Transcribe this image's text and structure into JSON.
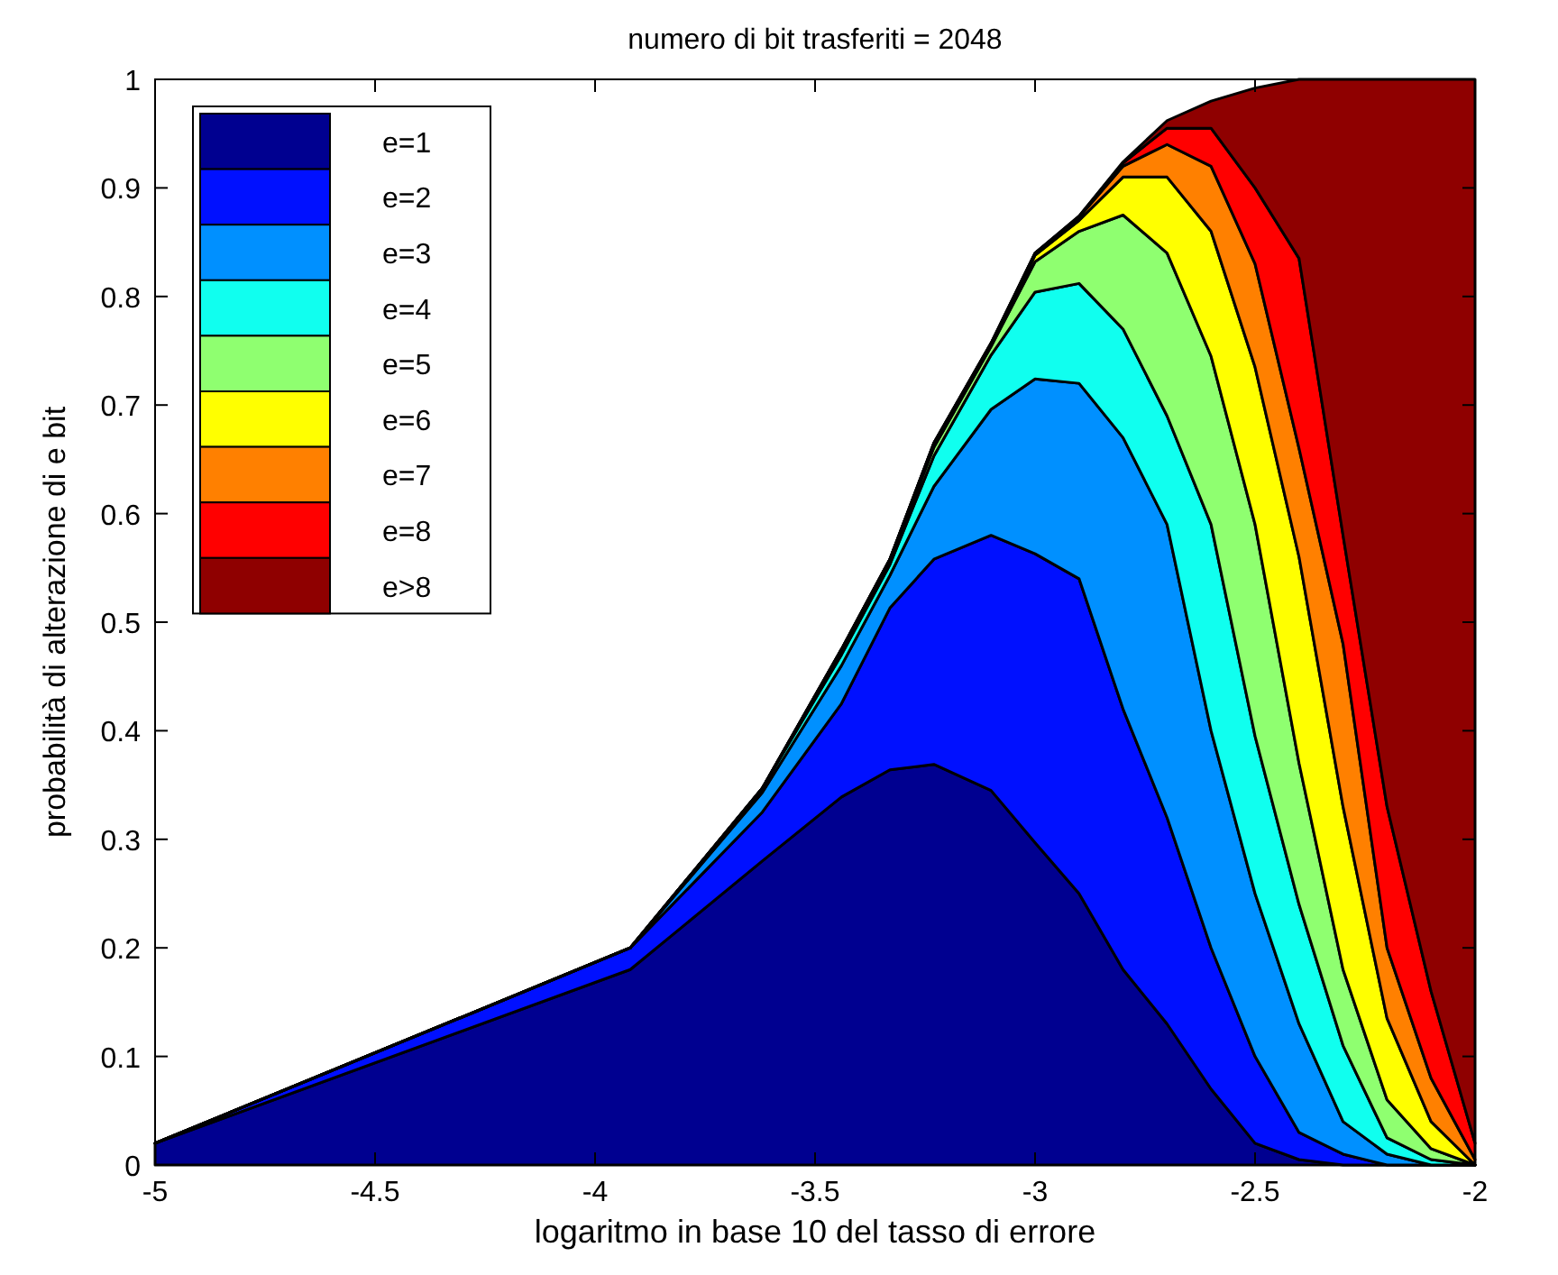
{
  "chart_data": {
    "type": "area",
    "stacked": true,
    "title": "numero di bit trasferiti = 2048",
    "xlabel": "logaritmo in base 10 del tasso di errore",
    "ylabel": "probabilità di alterazione di e bit",
    "x": [
      -5,
      -3.92,
      -3.62,
      -3.44,
      -3.33,
      -3.23,
      -3.1,
      -3.0,
      -2.9,
      -2.8,
      -2.7,
      -2.6,
      -2.5,
      -2.4,
      -2.3,
      -2.2,
      -2.1,
      -2.0
    ],
    "series": [
      {
        "name": "e=1",
        "color": "#000090",
        "values": [
          0.02,
          0.18,
          0.28,
          0.339,
          0.364,
          0.369,
          0.345,
          0.297,
          0.25,
          0.18,
          0.13,
          0.07,
          0.02,
          0.005,
          0,
          0,
          0,
          0
        ]
      },
      {
        "name": "e=2",
        "color": "#0010ff",
        "values": [
          0,
          0.02,
          0.045,
          0.086,
          0.149,
          0.189,
          0.235,
          0.266,
          0.29,
          0.24,
          0.19,
          0.13,
          0.08,
          0.025,
          0.01,
          0,
          0,
          0
        ]
      },
      {
        "name": "e=3",
        "color": "#0090ff",
        "values": [
          0,
          0,
          0.018,
          0.035,
          0.03,
          0.067,
          0.116,
          0.161,
          0.18,
          0.25,
          0.27,
          0.2,
          0.15,
          0.1,
          0.03,
          0.01,
          0,
          0
        ]
      },
      {
        "name": "e=4",
        "color": "#10ffef",
        "values": [
          0,
          0,
          0.004,
          0.01,
          0.01,
          0.028,
          0.05,
          0.08,
          0.092,
          0.1,
          0.1,
          0.19,
          0.145,
          0.11,
          0.07,
          0.015,
          0.005,
          0
        ]
      },
      {
        "name": "e=5",
        "color": "#8fff70",
        "values": [
          0,
          0,
          0,
          0.004,
          0.004,
          0.008,
          0.008,
          0.028,
          0.048,
          0.105,
          0.15,
          0.155,
          0.195,
          0.13,
          0.07,
          0.035,
          0.01,
          0
        ]
      },
      {
        "name": "e=6",
        "color": "#ffff00",
        "values": [
          0,
          0,
          0,
          0.001,
          0.001,
          0.003,
          0.002,
          0.006,
          0.01,
          0.035,
          0.07,
          0.115,
          0.145,
          0.19,
          0.15,
          0.075,
          0.025,
          0
        ]
      },
      {
        "name": "e=7",
        "color": "#ff8000",
        "values": [
          0,
          0,
          0,
          0,
          0,
          0.001,
          0.001,
          0.002,
          0.003,
          0.01,
          0.03,
          0.06,
          0.095,
          0.1,
          0.15,
          0.065,
          0.04,
          0.005
        ]
      },
      {
        "name": "e=8",
        "color": "#ff0000",
        "values": [
          0,
          0,
          0,
          0,
          0,
          0,
          0,
          0,
          0.001,
          0.003,
          0.015,
          0.035,
          0.07,
          0.175,
          0.1,
          0.13,
          0.08,
          0.015
        ]
      },
      {
        "name": "e>8",
        "color": "#8f0000",
        "values": [
          0,
          0,
          0,
          0,
          0,
          0,
          0,
          0,
          0,
          0.001,
          0.007,
          0.025,
          0.092,
          0.165,
          0.42,
          0.67,
          0.84,
          0.98
        ]
      }
    ],
    "xlim": [
      -5,
      -2
    ],
    "ylim": [
      0,
      1
    ],
    "xticks": [
      -5,
      -4.5,
      -4,
      -3.5,
      -3,
      -2.5,
      -2
    ],
    "yticks": [
      0,
      0.1,
      0.2,
      0.3,
      0.4,
      0.5,
      0.6,
      0.7,
      0.8,
      0.9,
      1
    ],
    "legend": "top left",
    "grid": false
  }
}
